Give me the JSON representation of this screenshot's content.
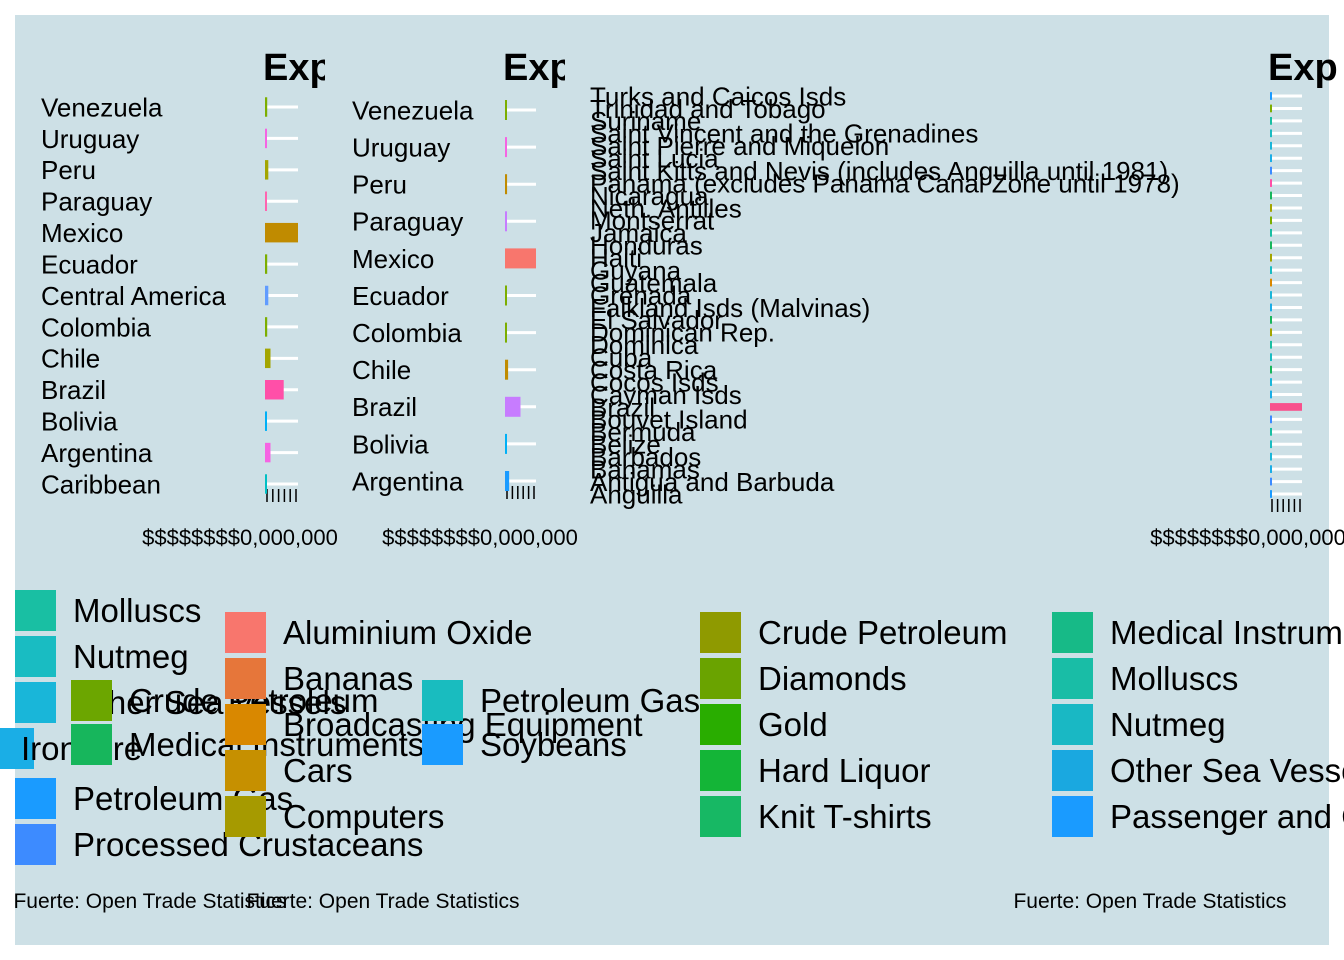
{
  "colors": {
    "panel_background": "#cde0e6",
    "gridline": "#ffffff",
    "text": "#000000"
  },
  "chart_data": [
    {
      "type": "bar",
      "orientation": "horizontal",
      "title": "Exp",
      "categories": [
        "Venezuela",
        "Uruguay",
        "Peru",
        "Paraguay",
        "Mexico",
        "Ecuador",
        "Central America",
        "Colombia",
        "Chile",
        "Brazil",
        "Bolivia",
        "Argentina",
        "Caribbean"
      ],
      "values": [
        2,
        1,
        3,
        1,
        30,
        2,
        3,
        2,
        5,
        17,
        1,
        5,
        1
      ],
      "bar_colors": [
        "#7cae00",
        "#f564e3",
        "#a3a500",
        "#ff64b0",
        "#c08b00",
        "#7cae00",
        "#619cff",
        "#7cae00",
        "#a3a500",
        "#ff4fa8",
        "#00b0f6",
        "#f564e3",
        "#00bfc4"
      ],
      "xlim": [
        0,
        30
      ],
      "x_tick_label": "$$$$$$$$0,000,000",
      "grid": true,
      "legend": {
        "position": "bottom",
        "entries": [
          {
            "label": "Molluscs",
            "color": "#19bfa3"
          },
          {
            "label": "Nutmeg",
            "color": "#19bcc2"
          },
          {
            "label": "Other Sea Vessels",
            "color": "#19b6d9"
          },
          {
            "label": "Iron Ore",
            "color": "#1aaee6"
          },
          {
            "label": "Crude Petroleum",
            "color": "#6ca600"
          },
          {
            "label": "Medical Instruments",
            "color": "#17b65c"
          },
          {
            "label": "Petroleum Gas",
            "color": "#1a9bff"
          },
          {
            "label": "Processed Crustaceans",
            "color": "#3d8bff"
          }
        ]
      },
      "caption": "Fuerte: Open Trade Statistics"
    },
    {
      "type": "bar",
      "orientation": "horizontal",
      "title": "Exp",
      "categories": [
        "Venezuela",
        "Uruguay",
        "Peru",
        "Paraguay",
        "Mexico",
        "Ecuador",
        "Colombia",
        "Chile",
        "Brazil",
        "Bolivia",
        "Argentina"
      ],
      "values": [
        1,
        1,
        2,
        1,
        30,
        1,
        1,
        3,
        15,
        1,
        4
      ],
      "bar_colors": [
        "#7cae00",
        "#f564e3",
        "#c08b00",
        "#c77cff",
        "#f8766d",
        "#7cae00",
        "#7cae00",
        "#c08b00",
        "#c77cff",
        "#00b0f6",
        "#1a9bff"
      ],
      "xlim": [
        0,
        30
      ],
      "x_tick_label": "$$$$$$$$0,000,000",
      "grid": true,
      "legend": {
        "position": "bottom",
        "entries": [
          {
            "label": "Aluminium Oxide",
            "color": "#f8766d"
          },
          {
            "label": "Bananas",
            "color": "#e6763a"
          },
          {
            "label": "Broadcasting Equipment",
            "color": "#d98800"
          },
          {
            "label": "Cars",
            "color": "#c69000"
          },
          {
            "label": "Computers",
            "color": "#a69a00"
          },
          {
            "label": "Petroleum Gas",
            "color": "#19bcbf"
          },
          {
            "label": "Soybeans",
            "color": "#1a9bff"
          }
        ]
      },
      "caption": "Fuerte: Open Trade Statistics"
    },
    {
      "type": "bar",
      "orientation": "horizontal",
      "title": "Exp",
      "categories": [
        "Turks and Caicos Isds",
        "Trinidad and Tobago",
        "Suriname",
        "Saint Vincent and the Grenadines",
        "Saint Pierre and Miquelon",
        "Saint Lucia",
        "Saint Kitts and Nevis (includes Anguilla until 1981)",
        "Panama (excludes Panama Canal Zone until 1978)",
        "Nicaragua",
        "Neth. Antilles",
        "Montserrat",
        "Jamaica",
        "Honduras",
        "Haiti",
        "Guyana",
        "Guatemala",
        "Grenada",
        "Falkland Isds (Malvinas)",
        "El Salvador",
        "Dominican Rep.",
        "Dominica",
        "Cuba",
        "Costa Rica",
        "Cocos Isds",
        "Cayman Isds",
        "Brazil",
        "Bouvet Island",
        "Bermuda",
        "Belize",
        "Barbados",
        "Bahamas",
        "Antigua and Barbuda",
        "Anguilla"
      ],
      "values": [
        0,
        1,
        0,
        0,
        0,
        0,
        0,
        0,
        1,
        0,
        0,
        0,
        1,
        0,
        0,
        1,
        0,
        0,
        1,
        0,
        0,
        0,
        1,
        0,
        0,
        30,
        0,
        0,
        0,
        0,
        0,
        0,
        0
      ],
      "bar_colors": [
        "#1a9bff",
        "#7cae00",
        "#19bfa3",
        "#19bcc2",
        "#19b6d9",
        "#1aaee6",
        "#3d8bff",
        "#ff4fa8",
        "#17b65c",
        "#a3a500",
        "#7cae00",
        "#19bfa3",
        "#17b65c",
        "#a3a500",
        "#19bcc2",
        "#d98800",
        "#19b6d9",
        "#1aaee6",
        "#17b65c",
        "#a3a500",
        "#19bfa3",
        "#19bcc2",
        "#17b65c",
        "#19b6d9",
        "#1aaee6",
        "#f8508c",
        "#3d8bff",
        "#19bfa3",
        "#19bcc2",
        "#19b6d9",
        "#1aaee6",
        "#3d8bff",
        "#1a9bff"
      ],
      "xlim": [
        0,
        30
      ],
      "x_tick_label": "$$$$$$$$0,000,000",
      "grid": true,
      "legend": {
        "position": "bottom",
        "entries": [
          {
            "label": "Crude Petroleum",
            "color": "#8f9a00"
          },
          {
            "label": "Diamonds",
            "color": "#6aa300"
          },
          {
            "label": "Gold",
            "color": "#29ad00"
          },
          {
            "label": "Hard Liquor",
            "color": "#14b537"
          },
          {
            "label": "Knit T-shirts",
            "color": "#17b864"
          },
          {
            "label": "Medical Instruments",
            "color": "#17ba87"
          },
          {
            "label": "Molluscs",
            "color": "#19bda6"
          },
          {
            "label": "Nutmeg",
            "color": "#19b8c4"
          },
          {
            "label": "Other Sea Vessels",
            "color": "#1aa8e0"
          },
          {
            "label": "Passenger and Cargo Ships",
            "color": "#1a9bff"
          }
        ]
      },
      "caption": "Fuerte: Open Trade Statistics"
    }
  ]
}
